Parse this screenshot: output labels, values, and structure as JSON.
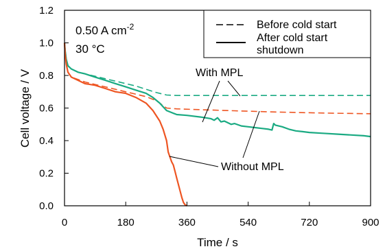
{
  "chart_data": {
    "type": "line",
    "xlabel": "Time / s",
    "ylabel": "Cell voltage / V",
    "xlim": [
      0,
      900
    ],
    "ylim": [
      0,
      1.2
    ],
    "xticks": [
      "0",
      "180",
      "360",
      "540",
      "720",
      "900"
    ],
    "yticks": [
      "0.0",
      "0.2",
      "0.4",
      "0.6",
      "0.8",
      "1.0",
      "1.2"
    ],
    "grid": false,
    "legend_position": "top-right",
    "condition_current": "0.50 A cm",
    "condition_current_exp": "-2",
    "condition_temp": "30 °C",
    "legend": {
      "before_label": "Before cold start",
      "after_label_line1": "After cold start",
      "after_label_line2": "shutdown"
    },
    "annotations": {
      "with_mpl": "With MPL",
      "without_mpl": "Without MPL"
    },
    "colors": {
      "with_mpl": "#1aaa82",
      "without_mpl": "#ee5522",
      "axis": "#000000"
    },
    "series": [
      {
        "key": "with_mpl_before",
        "style": "dashed",
        "color_key": "with_mpl",
        "x": [
          0,
          2,
          5,
          10,
          20,
          40,
          60,
          90,
          120,
          150,
          180,
          210,
          240,
          270,
          300,
          330,
          400,
          500,
          600,
          700,
          800,
          900
        ],
        "y": [
          1.0,
          0.96,
          0.9,
          0.86,
          0.84,
          0.82,
          0.81,
          0.795,
          0.78,
          0.765,
          0.75,
          0.735,
          0.715,
          0.695,
          0.68,
          0.677,
          0.677,
          0.677,
          0.677,
          0.677,
          0.677,
          0.677
        ]
      },
      {
        "key": "without_mpl_before",
        "style": "dashed",
        "color_key": "without_mpl",
        "x": [
          0,
          2,
          5,
          10,
          20,
          40,
          60,
          90,
          120,
          150,
          180,
          210,
          240,
          270,
          300,
          330,
          400,
          500,
          600,
          700,
          800,
          900
        ],
        "y": [
          1.0,
          0.95,
          0.88,
          0.82,
          0.79,
          0.775,
          0.76,
          0.745,
          0.73,
          0.715,
          0.7,
          0.685,
          0.67,
          0.645,
          0.6,
          0.595,
          0.59,
          0.583,
          0.577,
          0.572,
          0.568,
          0.565
        ]
      },
      {
        "key": "with_mpl_after",
        "style": "solid",
        "color_key": "with_mpl",
        "x": [
          0,
          2,
          5,
          10,
          20,
          40,
          60,
          90,
          120,
          150,
          180,
          210,
          240,
          260,
          280,
          300,
          330,
          360,
          400,
          430,
          440,
          450,
          460,
          470,
          480,
          490,
          500,
          520,
          540,
          560,
          580,
          600,
          610,
          615,
          620,
          640,
          660,
          680,
          700,
          720,
          760,
          800,
          840,
          880,
          900
        ],
        "y": [
          1.0,
          0.95,
          0.9,
          0.86,
          0.84,
          0.82,
          0.81,
          0.79,
          0.77,
          0.75,
          0.73,
          0.71,
          0.69,
          0.665,
          0.63,
          0.585,
          0.56,
          0.555,
          0.545,
          0.535,
          0.525,
          0.54,
          0.515,
          0.52,
          0.51,
          0.5,
          0.505,
          0.49,
          0.485,
          0.48,
          0.475,
          0.47,
          0.465,
          0.505,
          0.495,
          0.485,
          0.47,
          0.46,
          0.455,
          0.45,
          0.445,
          0.44,
          0.435,
          0.43,
          0.425
        ]
      },
      {
        "key": "without_mpl_after",
        "style": "solid",
        "color_key": "without_mpl",
        "x": [
          0,
          2,
          5,
          10,
          20,
          40,
          60,
          90,
          120,
          150,
          180,
          210,
          240,
          260,
          280,
          290,
          300,
          305,
          310,
          315,
          320,
          325,
          330,
          335,
          340,
          345,
          350,
          355,
          360
        ],
        "y": [
          1.0,
          0.93,
          0.87,
          0.82,
          0.79,
          0.77,
          0.75,
          0.74,
          0.72,
          0.7,
          0.69,
          0.665,
          0.63,
          0.585,
          0.52,
          0.47,
          0.4,
          0.33,
          0.3,
          0.27,
          0.25,
          0.21,
          0.17,
          0.13,
          0.09,
          0.05,
          0.02,
          0.005,
          0.0
        ]
      }
    ]
  }
}
